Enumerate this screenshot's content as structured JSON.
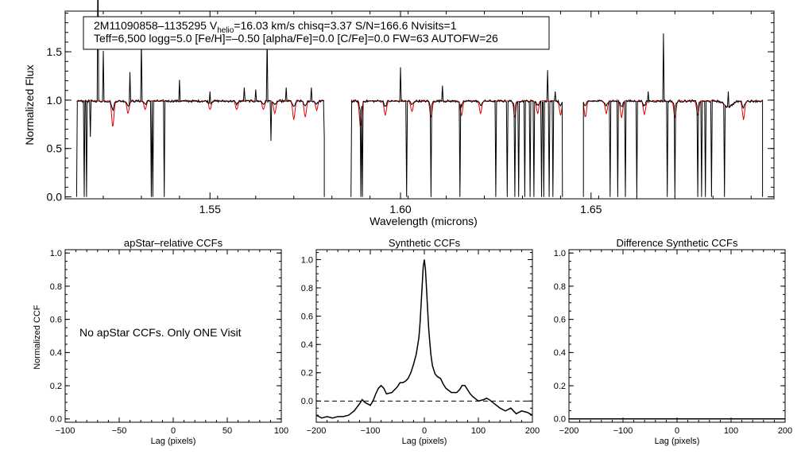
{
  "chart_data": [
    {
      "type": "line",
      "id": "spectrum",
      "xlabel": "Wavelength (microns)",
      "ylabel": "Normalized Flux",
      "xlim": [
        1.512,
        1.698
      ],
      "ylim": [
        -0.02,
        1.92
      ],
      "xticks": [
        1.55,
        1.6,
        1.65
      ],
      "xtick_labels": [
        "1.55",
        "1.60",
        "1.65"
      ],
      "yticks": [
        0.0,
        0.5,
        1.0,
        1.5
      ],
      "ytick_labels": [
        "0.0",
        "0.5",
        "1.0",
        "1.5"
      ],
      "annotation": {
        "line1_pre": "2M11090858–1135295  V",
        "line1_sub": "helio",
        "line1_post": "=16.03 km/s  chisq=3.37  S/N=166.6  Nvisits=1",
        "line2": "Teff=6,500 logg=5.0 [Fe/H]=–0.50 [alpha/Fe]=0.0 [C/Fe]=0.0 FW=63 AUTOFW=26"
      },
      "chips": [
        [
          1.514,
          1.581
        ],
        [
          1.586,
          1.6435
        ],
        [
          1.647,
          1.696
        ]
      ],
      "continuum": 0.99,
      "series": [
        {
          "color": "#000000",
          "emission": [
            [
              1.5185,
              0.42
            ],
            [
              1.5205,
              1.55
            ],
            [
              1.522,
              0.52
            ],
            [
              1.529,
              0.3
            ],
            [
              1.532,
              0.62
            ],
            [
              1.535,
              0.33
            ],
            [
              1.542,
              0.22
            ],
            [
              1.55,
              0.1
            ],
            [
              1.559,
              0.14
            ],
            [
              1.562,
              0.12
            ],
            [
              1.565,
              0.66
            ],
            [
              1.57,
              0.14
            ],
            [
              1.5765,
              0.14
            ],
            [
              1.6,
              0.35
            ],
            [
              1.611,
              0.16
            ],
            [
              1.6385,
              0.32
            ],
            [
              1.6405,
              0.1
            ],
            [
              1.665,
              0.1
            ],
            [
              1.669,
              0.7
            ],
            [
              1.686,
              0.1
            ]
          ],
          "dropouts": [
            [
              1.515,
              0.0
            ],
            [
              1.517,
              0.0
            ],
            [
              1.5175,
              0.0
            ],
            [
              1.5185,
              0.62
            ],
            [
              1.5345,
              0.0
            ],
            [
              1.535,
              0.0
            ],
            [
              1.538,
              0.0
            ],
            [
              1.566,
              0.58
            ],
            [
              1.58,
              0.62
            ],
            [
              1.587,
              0.0
            ],
            [
              1.5895,
              0.0
            ],
            [
              1.59,
              0.0
            ],
            [
              1.6015,
              0.0
            ],
            [
              1.608,
              0.0
            ],
            [
              1.6155,
              0.0
            ],
            [
              1.625,
              0.0
            ],
            [
              1.628,
              0.0
            ],
            [
              1.63,
              0.0
            ],
            [
              1.631,
              0.0
            ],
            [
              1.6325,
              0.0
            ],
            [
              1.634,
              0.0
            ],
            [
              1.635,
              0.0
            ],
            [
              1.637,
              0.0
            ],
            [
              1.6375,
              0.0
            ],
            [
              1.639,
              0.0
            ],
            [
              1.64,
              0.0
            ],
            [
              1.655,
              0.0
            ],
            [
              1.657,
              0.0
            ],
            [
              1.659,
              0.0
            ],
            [
              1.662,
              0.0
            ],
            [
              1.67,
              0.0
            ],
            [
              1.672,
              0.0
            ],
            [
              1.678,
              0.0
            ],
            [
              1.679,
              0.0
            ],
            [
              1.68,
              0.0
            ],
            [
              1.6815,
              0.0
            ],
            [
              1.685,
              0.0
            ]
          ]
        },
        {
          "color": "#e00000",
          "absorption": [
            [
              1.5245,
              0.72
            ],
            [
              1.5285,
              0.86
            ],
            [
              1.533,
              0.9
            ],
            [
              1.55,
              0.9
            ],
            [
              1.557,
              0.9
            ],
            [
              1.564,
              0.9
            ],
            [
              1.567,
              0.86
            ],
            [
              1.572,
              0.8
            ],
            [
              1.575,
              0.82
            ],
            [
              1.578,
              0.9
            ],
            [
              1.5895,
              0.72
            ],
            [
              1.596,
              0.84
            ],
            [
              1.603,
              0.88
            ],
            [
              1.608,
              0.82
            ],
            [
              1.616,
              0.84
            ],
            [
              1.621,
              0.86
            ],
            [
              1.63,
              0.82
            ],
            [
              1.636,
              0.86
            ],
            [
              1.642,
              0.84
            ],
            [
              1.6485,
              0.82
            ],
            [
              1.654,
              0.86
            ],
            [
              1.658,
              0.82
            ],
            [
              1.664,
              0.85
            ],
            [
              1.672,
              0.82
            ],
            [
              1.678,
              0.84
            ],
            [
              1.69,
              0.8
            ]
          ]
        }
      ]
    },
    {
      "type": "line",
      "id": "apstar_ccf",
      "title": "apStar–relative CCFs",
      "xlabel": "Lag (pixels)",
      "ylabel": "Normalized CCF",
      "xlim": [
        -100,
        100
      ],
      "ylim": [
        -0.02,
        1.02
      ],
      "xticks": [
        -100,
        -50,
        0,
        50,
        100
      ],
      "xtick_labels": [
        "−100",
        "−50",
        "0",
        "50",
        "100"
      ],
      "yticks": [
        0.0,
        0.2,
        0.4,
        0.6,
        0.8,
        1.0
      ],
      "ytick_labels": [
        "0.0",
        "0.2",
        "0.4",
        "0.6",
        "0.8",
        "1.0"
      ],
      "message": "No apStar CCFs.  Only ONE Visit",
      "series": []
    },
    {
      "type": "line",
      "id": "synthetic_ccf",
      "title": "Synthetic CCFs",
      "xlabel": "Lag (pixels)",
      "xlim": [
        -200,
        200
      ],
      "ylim": [
        -0.15,
        1.07
      ],
      "xticks": [
        -200,
        -100,
        0,
        100,
        200
      ],
      "xtick_labels": [
        "−200",
        "−100",
        "0",
        "100",
        "200"
      ],
      "yticks": [
        0.0,
        0.2,
        0.4,
        0.6,
        0.8,
        1.0
      ],
      "ytick_labels": [
        "0.0",
        "0.2",
        "0.4",
        "0.6",
        "0.8",
        "1.0"
      ],
      "hline": 0.0,
      "series": [
        {
          "color": "#000000",
          "x": [
            -200,
            -190,
            -180,
            -170,
            -160,
            -150,
            -140,
            -130,
            -120,
            -115,
            -110,
            -100,
            -95,
            -90,
            -85,
            -80,
            -75,
            -70,
            -60,
            -50,
            -45,
            -40,
            -35,
            -30,
            -25,
            -20,
            -15,
            -10,
            -8,
            -6,
            -4,
            -2,
            0,
            2,
            4,
            6,
            8,
            10,
            12,
            15,
            20,
            25,
            30,
            35,
            40,
            50,
            60,
            65,
            70,
            75,
            80,
            85,
            90,
            100,
            110,
            115,
            120,
            130,
            140,
            150,
            160,
            170,
            180,
            190,
            200
          ],
          "y": [
            -0.1,
            -0.12,
            -0.11,
            -0.12,
            -0.11,
            -0.11,
            -0.1,
            -0.07,
            -0.02,
            0.01,
            -0.01,
            -0.03,
            0.0,
            0.05,
            0.09,
            0.11,
            0.09,
            0.05,
            0.06,
            0.1,
            0.13,
            0.13,
            0.14,
            0.16,
            0.2,
            0.26,
            0.33,
            0.45,
            0.55,
            0.68,
            0.82,
            0.95,
            1.0,
            0.93,
            0.8,
            0.65,
            0.52,
            0.42,
            0.33,
            0.25,
            0.19,
            0.17,
            0.16,
            0.12,
            0.09,
            0.06,
            0.06,
            0.08,
            0.11,
            0.11,
            0.08,
            0.05,
            0.03,
            0.0,
            0.01,
            0.02,
            0.01,
            -0.02,
            -0.05,
            -0.07,
            -0.05,
            -0.09,
            -0.07,
            -0.08,
            -0.1
          ]
        }
      ]
    },
    {
      "type": "line",
      "id": "difference_ccf",
      "title": "Difference Synthetic CCFs",
      "xlabel": "Lag (pixels)",
      "xlim": [
        -200,
        200
      ],
      "ylim": [
        -0.02,
        1.02
      ],
      "xticks": [
        -200,
        -100,
        0,
        100,
        200
      ],
      "xtick_labels": [
        "−200",
        "−100",
        "0",
        "100",
        "200"
      ],
      "yticks": [
        0.0,
        0.2,
        0.4,
        0.6,
        0.8,
        1.0
      ],
      "ytick_labels": [
        "0.0",
        "0.2",
        "0.4",
        "0.6",
        "0.8",
        "1.0"
      ],
      "series": [
        {
          "color": "#000000",
          "x": [
            -200,
            200
          ],
          "y": [
            0.0,
            0.0
          ]
        }
      ]
    }
  ]
}
